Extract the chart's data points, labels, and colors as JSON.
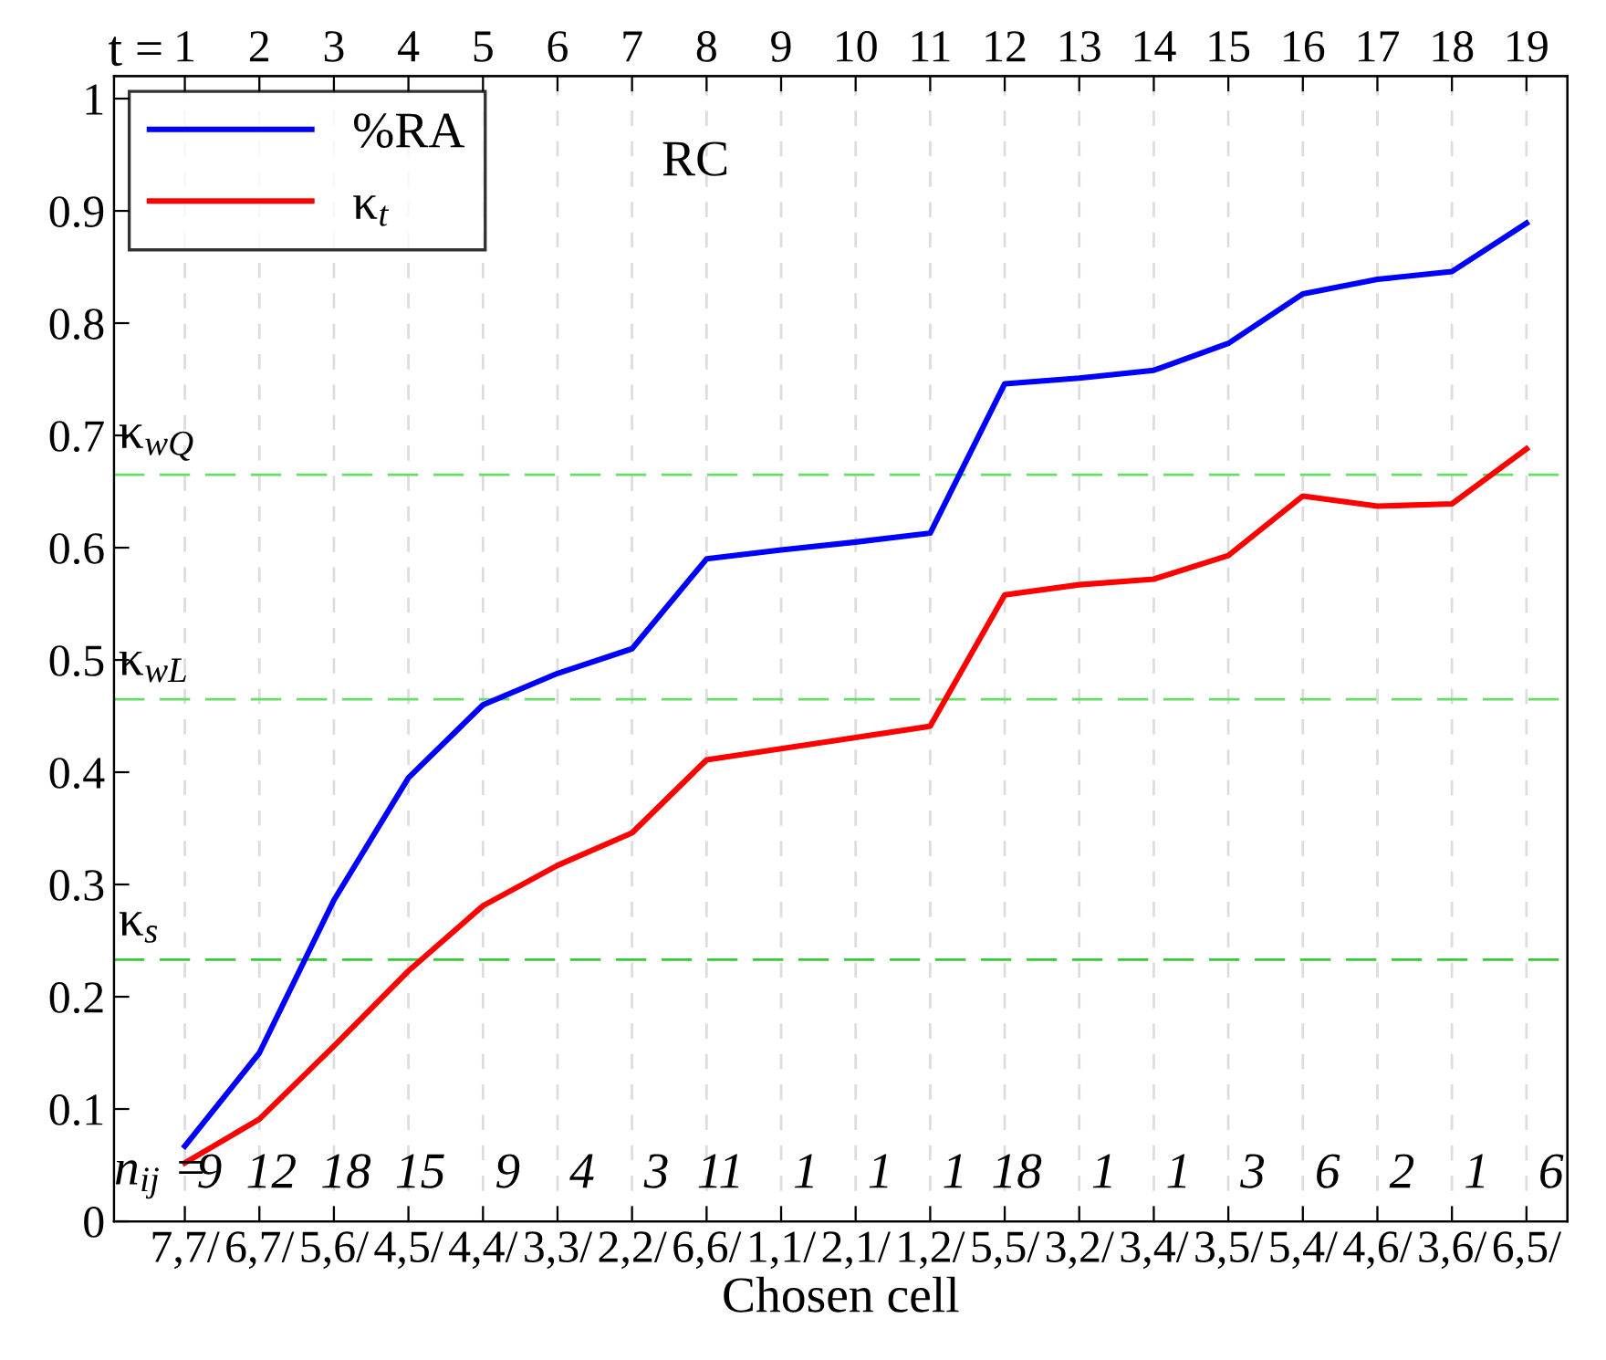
{
  "chart_data": {
    "type": "line",
    "title": "RC",
    "xlabel": "Chosen cell",
    "x2label": "t =",
    "categories": [
      "7,7/",
      "6,7/",
      "5,6/",
      "4,5/",
      "4,4/",
      "3,3/",
      "2,2/",
      "6,6/",
      "1,1/",
      "2,1/",
      "1,2/",
      "5,5/",
      "3,2/",
      "3,4/",
      "3,5/",
      "5,4/",
      "4,6/",
      "3,6/",
      "6,5/"
    ],
    "series": [
      {
        "name": "%RA",
        "color": "#0000ff",
        "values": [
          0.067,
          0.15,
          0.286,
          0.395,
          0.46,
          0.488,
          0.51,
          0.59,
          0.598,
          0.605,
          0.613,
          0.746,
          0.751,
          0.758,
          0.782,
          0.826,
          0.839,
          0.846,
          0.889
        ]
      },
      {
        "name": "κ$_{t}$",
        "color": "#ff0000",
        "values": [
          0.052,
          0.091,
          0.156,
          0.223,
          0.281,
          0.317,
          0.346,
          0.411,
          0.421,
          0.431,
          0.441,
          0.558,
          0.567,
          0.572,
          0.593,
          0.646,
          0.637,
          0.639,
          0.688
        ]
      }
    ],
    "ylim": [
      0,
      1.02
    ],
    "yticks": [
      0,
      0.1,
      0.2,
      0.3,
      0.4,
      0.5,
      0.6,
      0.7,
      0.8,
      0.9,
      1
    ],
    "x2lim": [
      0.05,
      19.55
    ],
    "x2ticks": [
      1,
      2,
      3,
      4,
      5,
      6,
      7,
      8,
      9,
      10,
      11,
      12,
      13,
      14,
      15,
      16,
      17,
      18,
      19
    ],
    "ref_lines": [
      {
        "axis": "y",
        "value": 0.665,
        "label": "κ$_{wQ}$",
        "color": "#66dd66",
        "line_style": "dashed"
      },
      {
        "axis": "y",
        "value": 0.465,
        "label": "κ$_{wL}$",
        "color": "#66dd66",
        "line_style": "dashed"
      },
      {
        "axis": "y",
        "value": 0.233,
        "label": "κ$_{s}$",
        "color": "#33cc33",
        "line_style": "dashed"
      }
    ],
    "annotations": [
      "n$_{ij}$ =",
      "9",
      "12",
      "18",
      "15",
      "9",
      "4",
      "3",
      "11",
      "1",
      "1",
      "1",
      "18",
      "1",
      "1",
      "3",
      "6",
      "2",
      "1",
      "6"
    ],
    "grid": "x",
    "legend": "top left",
    "marker": "none",
    "line_style": "solid"
  }
}
